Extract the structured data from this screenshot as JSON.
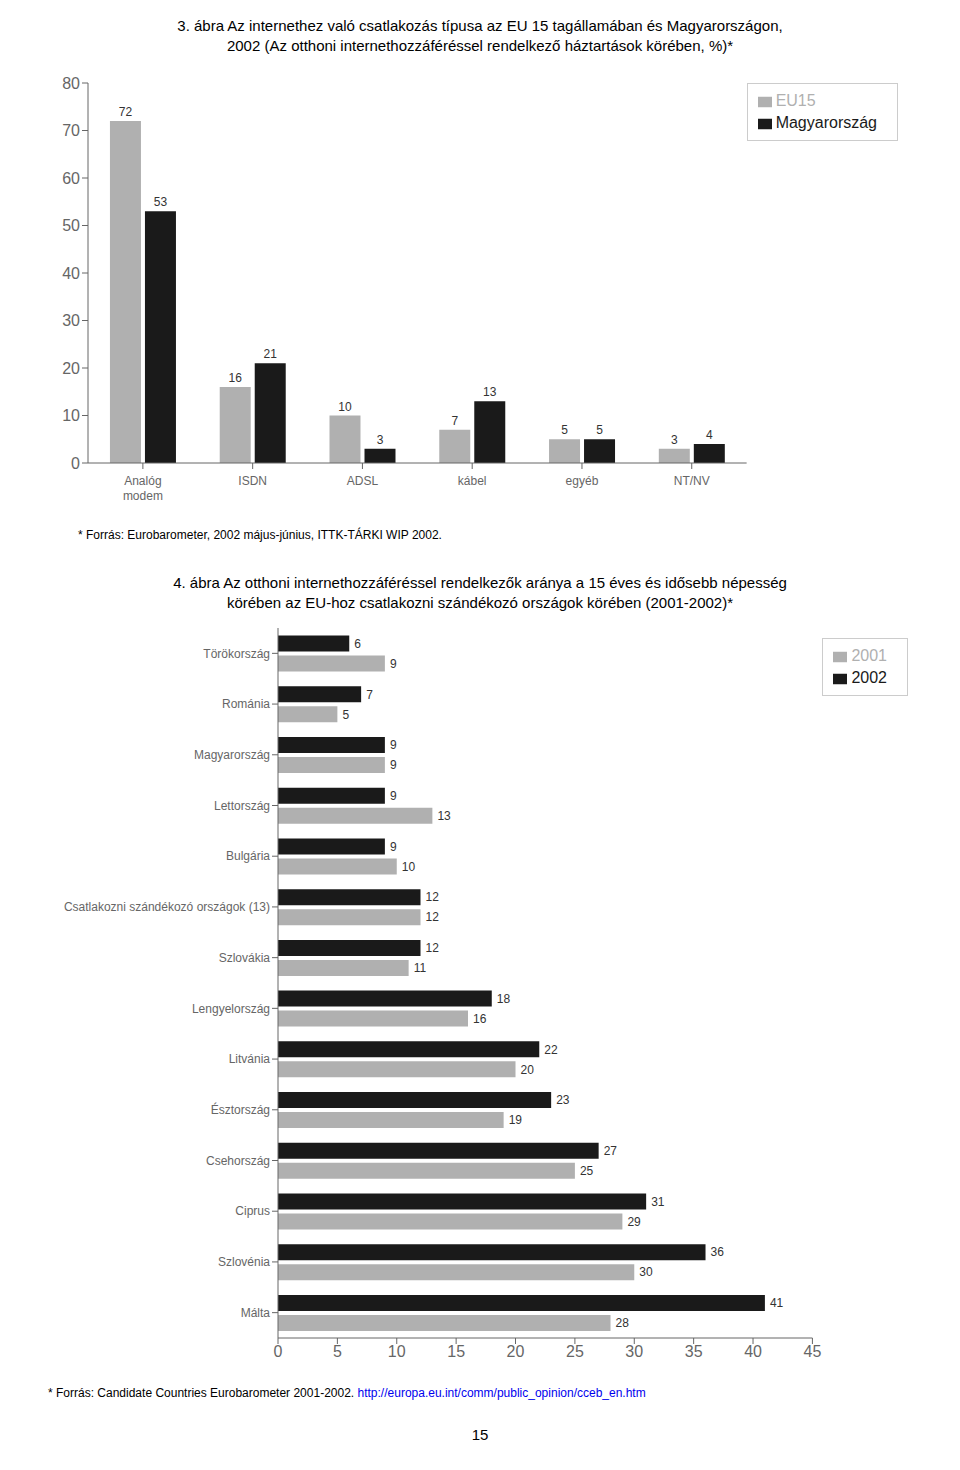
{
  "chart_data": [
    {
      "type": "bar",
      "title": "3. ábra Az internethez való csatlakozás típusa az EU 15 tagállamában és Magyarországon,\n2002 (Az otthoni internethozzáféréssel rendelkező háztartások körében, %)*",
      "categories": [
        "Analóg\nmodem",
        "ISDN",
        "ADSL",
        "kábel",
        "egyéb",
        "NT/NV"
      ],
      "series": [
        {
          "name": "EU15",
          "color": "#b0b0b0",
          "values": [
            72,
            16,
            10,
            7,
            5,
            3
          ]
        },
        {
          "name": "Magyarország",
          "color": "#1a1a1a",
          "values": [
            53,
            21,
            3,
            13,
            5,
            4
          ]
        }
      ],
      "ylim": [
        0,
        80
      ],
      "yticks": [
        0,
        10,
        20,
        30,
        40,
        50,
        60,
        70,
        80
      ],
      "grid": false,
      "legend": "upper right",
      "data_labels": true,
      "annotations": [
        "* Forrás: Eurobarometer, 2002 május-június, ITTK-TÁRKI WIP 2002."
      ]
    },
    {
      "type": "bar",
      "orientation": "horizontal",
      "title": "4. ábra Az otthoni internethozzáféréssel rendelkezők aránya a 15 éves és idősebb népesség\nkörében az EU-hoz csatlakozni szándékozó országok körében (2001-2002)*",
      "categories": [
        "Málta",
        "Szlovénia",
        "Ciprus",
        "Csehország",
        "Észtország",
        "Litvánia",
        "Lengyelország",
        "Szlovákia",
        "Csatlakozni szándékozó országok (13)",
        "Bulgária",
        "Lettország",
        "Magyarország",
        "Románia",
        "Törökország"
      ],
      "series": [
        {
          "name": "2002",
          "color": "#1a1a1a",
          "values": [
            41,
            36,
            31,
            27,
            23,
            22,
            18,
            12,
            12,
            9,
            9,
            9,
            7,
            6
          ]
        },
        {
          "name": "2001",
          "color": "#b0b0b0",
          "values": [
            28,
            30,
            29,
            25,
            19,
            20,
            16,
            11,
            12,
            10,
            13,
            9,
            5,
            9
          ]
        }
      ],
      "xlim": [
        0,
        45
      ],
      "xticks": [
        0,
        5,
        10,
        15,
        20,
        25,
        30,
        35,
        40,
        45
      ],
      "grid": false,
      "legend": "upper right",
      "data_labels": true,
      "annotations": [
        "* Forrás: Candidate Countries Eurobarometer 2001-2002. ",
        "http://europa.eu.int/comm/public_opinion/cceb_en.htm"
      ]
    }
  ],
  "annotations": [
    "15"
  ]
}
